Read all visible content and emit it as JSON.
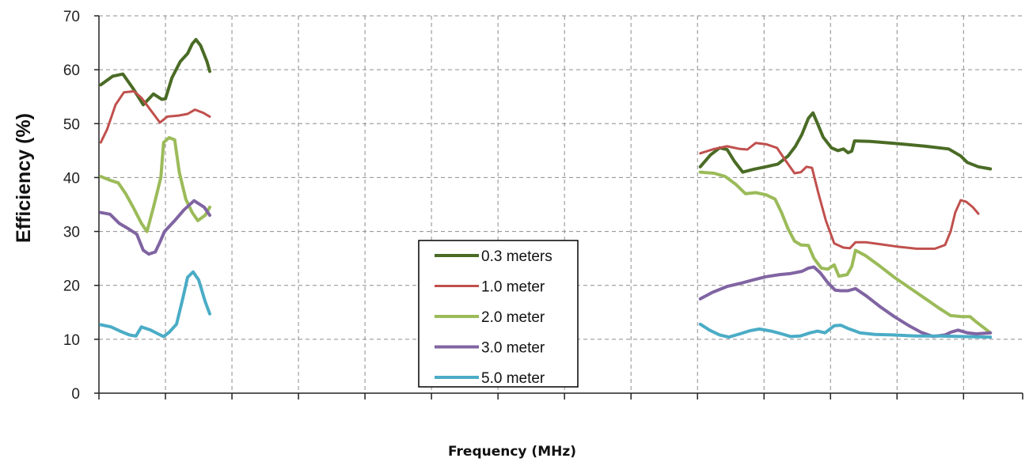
{
  "chart_data": {
    "type": "line",
    "title": "",
    "xlabel": "Frequency (MHz)",
    "ylabel": "Efficiency (%)",
    "ylim": [
      0,
      70
    ],
    "yticks": [
      "0",
      "10",
      "20",
      "30",
      "40",
      "50",
      "60",
      "70"
    ],
    "xlim": [
      0,
      100
    ],
    "x_tick_positions": [
      0,
      7.2,
      14.4,
      21.6,
      28.8,
      36,
      43.2,
      50.4,
      57.6,
      64.8,
      72,
      79.2,
      86.4,
      93.6,
      100
    ],
    "x_tick_labels_visible": false,
    "grid": true,
    "legend_position": "center-bottom",
    "series": [
      {
        "name": "0.3 meters",
        "color": "#4a6b25",
        "width": 4,
        "segments": [
          [
            [
              0.2,
              57.2
            ],
            [
              1.5,
              58.8
            ],
            [
              2.6,
              59.2
            ],
            [
              3.7,
              56.5
            ],
            [
              4.8,
              53.5
            ],
            [
              5.9,
              55.5
            ],
            [
              6.8,
              54.5
            ],
            [
              7.2,
              54.6
            ],
            [
              7.9,
              58.5
            ],
            [
              8.8,
              61.5
            ],
            [
              9.6,
              63.0
            ],
            [
              10.1,
              64.8
            ],
            [
              10.5,
              65.6
            ],
            [
              11.0,
              64.5
            ],
            [
              11.7,
              61.5
            ],
            [
              12.0,
              59.7
            ]
          ],
          [
            [
              65.1,
              42.0
            ],
            [
              66.2,
              44.2
            ],
            [
              67.2,
              45.5
            ],
            [
              68.0,
              45.2
            ],
            [
              68.8,
              43.0
            ],
            [
              69.7,
              41.0
            ],
            [
              70.8,
              41.5
            ],
            [
              72.2,
              42.0
            ],
            [
              73.5,
              42.5
            ],
            [
              74.6,
              44.0
            ],
            [
              75.4,
              45.8
            ],
            [
              76.1,
              48.0
            ],
            [
              76.8,
              51.0
            ],
            [
              77.3,
              52.0
            ],
            [
              77.8,
              50.0
            ],
            [
              78.4,
              47.5
            ],
            [
              79.3,
              45.5
            ],
            [
              80.0,
              45.0
            ],
            [
              80.6,
              45.3
            ],
            [
              81.1,
              44.6
            ],
            [
              81.5,
              44.9
            ],
            [
              81.8,
              46.8
            ],
            [
              83.5,
              46.7
            ],
            [
              86.4,
              46.3
            ],
            [
              89.5,
              45.8
            ],
            [
              92.0,
              45.3
            ],
            [
              93.3,
              44.0
            ],
            [
              94.0,
              42.8
            ],
            [
              95.2,
              42.0
            ],
            [
              96.5,
              41.6
            ]
          ]
        ]
      },
      {
        "name": "1.0 meter",
        "color": "#c0504d",
        "width": 3,
        "segments": [
          [
            [
              0.2,
              46.5
            ],
            [
              0.9,
              49.0
            ],
            [
              1.8,
              53.5
            ],
            [
              2.7,
              55.8
            ],
            [
              3.8,
              56.0
            ],
            [
              4.6,
              54.8
            ],
            [
              5.6,
              52.5
            ],
            [
              6.6,
              50.2
            ],
            [
              7.4,
              51.3
            ],
            [
              8.6,
              51.5
            ],
            [
              9.6,
              51.8
            ],
            [
              10.4,
              52.6
            ],
            [
              11.3,
              52.0
            ],
            [
              12.0,
              51.3
            ]
          ],
          [
            [
              65.1,
              44.5
            ],
            [
              66.6,
              45.3
            ],
            [
              68.0,
              45.8
            ],
            [
              69.4,
              45.3
            ],
            [
              70.2,
              45.2
            ],
            [
              71.1,
              46.4
            ],
            [
              72.2,
              46.2
            ],
            [
              73.4,
              45.5
            ],
            [
              74.2,
              43.5
            ],
            [
              75.3,
              40.8
            ],
            [
              76.0,
              41.0
            ],
            [
              76.6,
              42.0
            ],
            [
              77.2,
              41.8
            ],
            [
              77.9,
              37.0
            ],
            [
              78.7,
              32.0
            ],
            [
              79.6,
              27.8
            ],
            [
              80.6,
              27.0
            ],
            [
              81.3,
              26.9
            ],
            [
              81.9,
              28.0
            ],
            [
              83.0,
              28.0
            ],
            [
              84.7,
              27.6
            ],
            [
              86.4,
              27.2
            ],
            [
              88.5,
              26.8
            ],
            [
              90.5,
              26.8
            ],
            [
              91.6,
              27.5
            ],
            [
              92.2,
              30.0
            ],
            [
              92.7,
              33.5
            ],
            [
              93.3,
              35.8
            ],
            [
              93.9,
              35.5
            ],
            [
              94.6,
              34.5
            ],
            [
              95.2,
              33.3
            ]
          ]
        ]
      },
      {
        "name": "2.0 meter",
        "color": "#9bbb59",
        "width": 4,
        "segments": [
          [
            [
              0.2,
              40.2
            ],
            [
              1.2,
              39.5
            ],
            [
              2.1,
              39.0
            ],
            [
              2.9,
              37.0
            ],
            [
              3.7,
              34.5
            ],
            [
              4.6,
              31.5
            ],
            [
              5.2,
              30.0
            ],
            [
              5.9,
              34.5
            ],
            [
              6.7,
              40.0
            ],
            [
              7.0,
              46.5
            ],
            [
              7.6,
              47.4
            ],
            [
              8.2,
              47.0
            ],
            [
              8.7,
              41.0
            ],
            [
              9.4,
              36.0
            ],
            [
              10.1,
              33.5
            ],
            [
              10.7,
              32.0
            ],
            [
              11.5,
              33.0
            ],
            [
              12.0,
              34.5
            ]
          ],
          [
            [
              65.1,
              41.0
            ],
            [
              66.6,
              40.8
            ],
            [
              67.8,
              40.2
            ],
            [
              68.9,
              38.8
            ],
            [
              70.0,
              37.0
            ],
            [
              71.1,
              37.2
            ],
            [
              72.2,
              36.8
            ],
            [
              73.2,
              36.0
            ],
            [
              73.9,
              33.5
            ],
            [
              74.6,
              30.5
            ],
            [
              75.3,
              28.2
            ],
            [
              76.0,
              27.5
            ],
            [
              76.8,
              27.4
            ],
            [
              77.4,
              25.0
            ],
            [
              78.2,
              23.2
            ],
            [
              78.9,
              23.0
            ],
            [
              79.6,
              23.8
            ],
            [
              80.1,
              21.7
            ],
            [
              81.0,
              22.0
            ],
            [
              81.5,
              23.5
            ],
            [
              81.9,
              26.5
            ],
            [
              83.0,
              25.5
            ],
            [
              84.6,
              23.5
            ],
            [
              86.1,
              21.5
            ],
            [
              87.8,
              19.5
            ],
            [
              89.5,
              17.5
            ],
            [
              91.0,
              15.7
            ],
            [
              92.2,
              14.4
            ],
            [
              93.4,
              14.2
            ],
            [
              94.3,
              14.2
            ],
            [
              95.0,
              13.2
            ],
            [
              96.5,
              11.2
            ]
          ]
        ]
      },
      {
        "name": "3.0 meter",
        "color": "#8064a2",
        "width": 4,
        "segments": [
          [
            [
              0.2,
              33.5
            ],
            [
              1.2,
              33.2
            ],
            [
              2.2,
              31.5
            ],
            [
              3.2,
              30.5
            ],
            [
              4.1,
              29.5
            ],
            [
              4.8,
              26.5
            ],
            [
              5.4,
              25.8
            ],
            [
              6.1,
              26.2
            ],
            [
              6.6,
              28.0
            ],
            [
              7.1,
              30.0
            ],
            [
              8.2,
              32.0
            ],
            [
              9.2,
              34.0
            ],
            [
              10.3,
              35.7
            ],
            [
              11.4,
              34.5
            ],
            [
              12.0,
              33.0
            ]
          ],
          [
            [
              65.1,
              17.5
            ],
            [
              66.4,
              18.7
            ],
            [
              68.0,
              19.8
            ],
            [
              69.5,
              20.4
            ],
            [
              70.8,
              21.0
            ],
            [
              72.2,
              21.6
            ],
            [
              73.7,
              22.0
            ],
            [
              74.9,
              22.2
            ],
            [
              76.1,
              22.6
            ],
            [
              76.8,
              23.2
            ],
            [
              77.4,
              23.4
            ],
            [
              78.1,
              22.3
            ],
            [
              78.9,
              20.5
            ],
            [
              79.7,
              19.1
            ],
            [
              80.3,
              19.0
            ],
            [
              81.1,
              19.0
            ],
            [
              81.9,
              19.4
            ],
            [
              83.1,
              18.0
            ],
            [
              84.6,
              16.0
            ],
            [
              86.1,
              14.2
            ],
            [
              87.6,
              12.6
            ],
            [
              89.0,
              11.3
            ],
            [
              90.3,
              10.5
            ],
            [
              91.6,
              10.8
            ],
            [
              92.2,
              11.3
            ],
            [
              93.0,
              11.7
            ],
            [
              94.0,
              11.2
            ],
            [
              95.0,
              11.0
            ],
            [
              96.5,
              11.2
            ]
          ]
        ]
      },
      {
        "name": "5.0 meter",
        "color": "#4bacc6",
        "width": 4,
        "segments": [
          [
            [
              0.2,
              12.7
            ],
            [
              1.3,
              12.3
            ],
            [
              2.3,
              11.5
            ],
            [
              3.3,
              10.8
            ],
            [
              4.0,
              10.6
            ],
            [
              4.6,
              12.3
            ],
            [
              5.6,
              11.7
            ],
            [
              6.4,
              11.0
            ],
            [
              7.0,
              10.5
            ],
            [
              7.6,
              11.3
            ],
            [
              8.4,
              12.8
            ],
            [
              9.0,
              17.0
            ],
            [
              9.6,
              21.5
            ],
            [
              10.2,
              22.5
            ],
            [
              10.8,
              21.0
            ],
            [
              11.5,
              17.0
            ],
            [
              12.0,
              14.7
            ]
          ],
          [
            [
              65.1,
              12.8
            ],
            [
              66.1,
              11.7
            ],
            [
              67.2,
              10.8
            ],
            [
              68.2,
              10.4
            ],
            [
              69.4,
              11.0
            ],
            [
              70.5,
              11.6
            ],
            [
              71.5,
              11.9
            ],
            [
              72.8,
              11.5
            ],
            [
              73.9,
              11.0
            ],
            [
              74.9,
              10.5
            ],
            [
              75.9,
              10.6
            ],
            [
              77.0,
              11.2
            ],
            [
              77.8,
              11.5
            ],
            [
              78.6,
              11.2
            ],
            [
              79.6,
              12.5
            ],
            [
              80.3,
              12.6
            ],
            [
              81.1,
              12.0
            ],
            [
              81.9,
              11.5
            ],
            [
              82.4,
              11.2
            ],
            [
              84.0,
              10.9
            ],
            [
              86.0,
              10.8
            ],
            [
              88.5,
              10.6
            ],
            [
              91.0,
              10.6
            ],
            [
              93.5,
              10.5
            ],
            [
              96.5,
              10.4
            ]
          ]
        ]
      }
    ]
  }
}
